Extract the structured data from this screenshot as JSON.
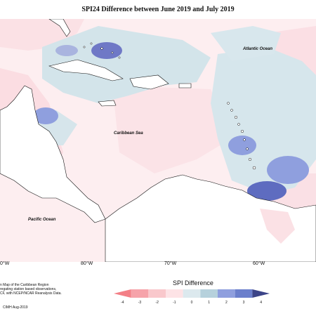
{
  "title": "SPI24 Difference between June 2019 and July 2019",
  "labels": {
    "atlantic": "Atlantic Ocean",
    "caribbean": "Caribbean Sea",
    "pacific": "Pacific Ocean"
  },
  "longitudes": [
    "0°W",
    "80°W",
    "70°W",
    "60°W"
  ],
  "notes": [
    "n Map of the Caribbean Region",
    "regating station based observations,",
    "CF, with NCEP/NCAR Reanalysis Data."
  ],
  "credit": "CIMH Aug-2019",
  "legend": {
    "title": "SPI Difference",
    "ticks": [
      "-4",
      "-3",
      "-2",
      "-1",
      "0",
      "1",
      "2",
      "3",
      "4"
    ],
    "colors": [
      "#f37f86",
      "#f6a3aa",
      "#f9c8cc",
      "#fde3e6",
      "#dce9ee",
      "#b6d1dc",
      "#8f9fde",
      "#6b7fcc",
      "#3c4488"
    ]
  },
  "colors": {
    "pink_light": "#fde6ea",
    "pink_mid": "#f8cdd4",
    "blue_light": "#d3e4ea",
    "blue_mid": "#8ea5d8",
    "blue_dark": "#5462b6"
  }
}
